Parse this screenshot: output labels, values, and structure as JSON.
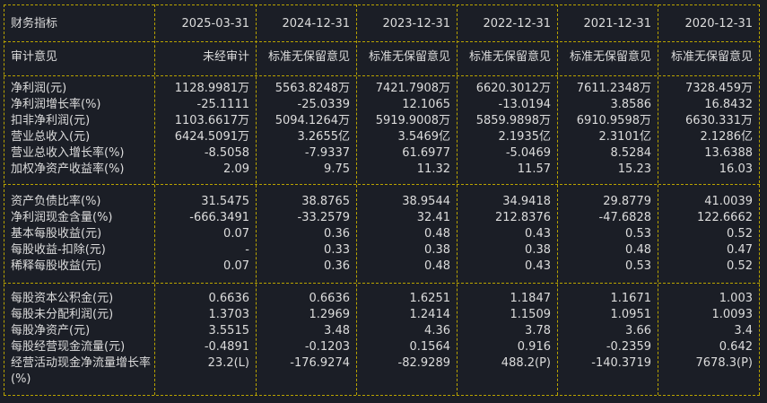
{
  "header": {
    "title": "财务指标",
    "dates": [
      "2025-03-31",
      "2024-12-31",
      "2023-12-31",
      "2022-12-31",
      "2021-12-31",
      "2020-12-31"
    ]
  },
  "audit": {
    "label": "审计意见",
    "values": [
      "未经审计",
      "标准无保留意见",
      "标准无保留意见",
      "标准无保留意见",
      "标准无保留意见",
      "标准无保留意见"
    ]
  },
  "groups": [
    [
      {
        "label": "净利润(元)",
        "values": [
          "1128.9981万",
          "5563.8248万",
          "7421.7908万",
          "6620.3012万",
          "7611.2348万",
          "7328.459万"
        ]
      },
      {
        "label": "净利润增长率(%)",
        "values": [
          "-25.1111",
          "-25.0339",
          "12.1065",
          "-13.0194",
          "3.8586",
          "16.8432"
        ]
      },
      {
        "label": "扣非净利润(元)",
        "values": [
          "1103.6617万",
          "5094.1264万",
          "5919.9008万",
          "5859.9898万",
          "6910.9598万",
          "6630.331万"
        ]
      },
      {
        "label": "营业总收入(元)",
        "values": [
          "6424.5091万",
          "3.2655亿",
          "3.5469亿",
          "2.1935亿",
          "2.3101亿",
          "2.1286亿"
        ]
      },
      {
        "label": "营业总收入增长率(%)",
        "values": [
          "-8.5058",
          "-7.9337",
          "61.6977",
          "-5.0469",
          "8.5284",
          "13.6388"
        ]
      },
      {
        "label": "加权净资产收益率(%)",
        "values": [
          "2.09",
          "9.75",
          "11.32",
          "11.57",
          "15.23",
          "16.03"
        ]
      }
    ],
    [
      {
        "label": "资产负债比率(%)",
        "values": [
          "31.5475",
          "38.8765",
          "38.9544",
          "34.9418",
          "29.8779",
          "41.0039"
        ]
      },
      {
        "label": "净利润现金含量(%)",
        "values": [
          "-666.3491",
          "-33.2579",
          "32.41",
          "212.8376",
          "-47.6828",
          "122.6662"
        ]
      },
      {
        "label": "基本每股收益(元)",
        "values": [
          "0.07",
          "0.36",
          "0.48",
          "0.43",
          "0.53",
          "0.52"
        ]
      },
      {
        "label": "每股收益-扣除(元)",
        "values": [
          "-",
          "0.33",
          "0.38",
          "0.38",
          "0.48",
          "0.47"
        ]
      },
      {
        "label": "稀释每股收益(元)",
        "values": [
          "0.07",
          "0.36",
          "0.48",
          "0.43",
          "0.53",
          "0.52"
        ]
      }
    ],
    [
      {
        "label": "每股资本公积金(元)",
        "values": [
          "0.6636",
          "0.6636",
          "1.6251",
          "1.1847",
          "1.1671",
          "1.003"
        ]
      },
      {
        "label": "每股未分配利润(元)",
        "values": [
          "1.3703",
          "1.2969",
          "1.2414",
          "1.1509",
          "1.0951",
          "1.0093"
        ]
      },
      {
        "label": "每股净资产(元)",
        "values": [
          "3.5515",
          "3.48",
          "4.36",
          "3.78",
          "3.66",
          "3.4"
        ]
      },
      {
        "label": "每股经营现金流量(元)",
        "values": [
          "-0.4891",
          "-0.1203",
          "0.1564",
          "0.916",
          "-0.2359",
          "0.642"
        ]
      },
      {
        "label": "经营活动现金净流量增长率(%)",
        "values": [
          "23.2(L)",
          "-176.9274",
          "-82.9289",
          "488.2(P)",
          "-140.3719",
          "7678.3(P)"
        ]
      }
    ]
  ]
}
